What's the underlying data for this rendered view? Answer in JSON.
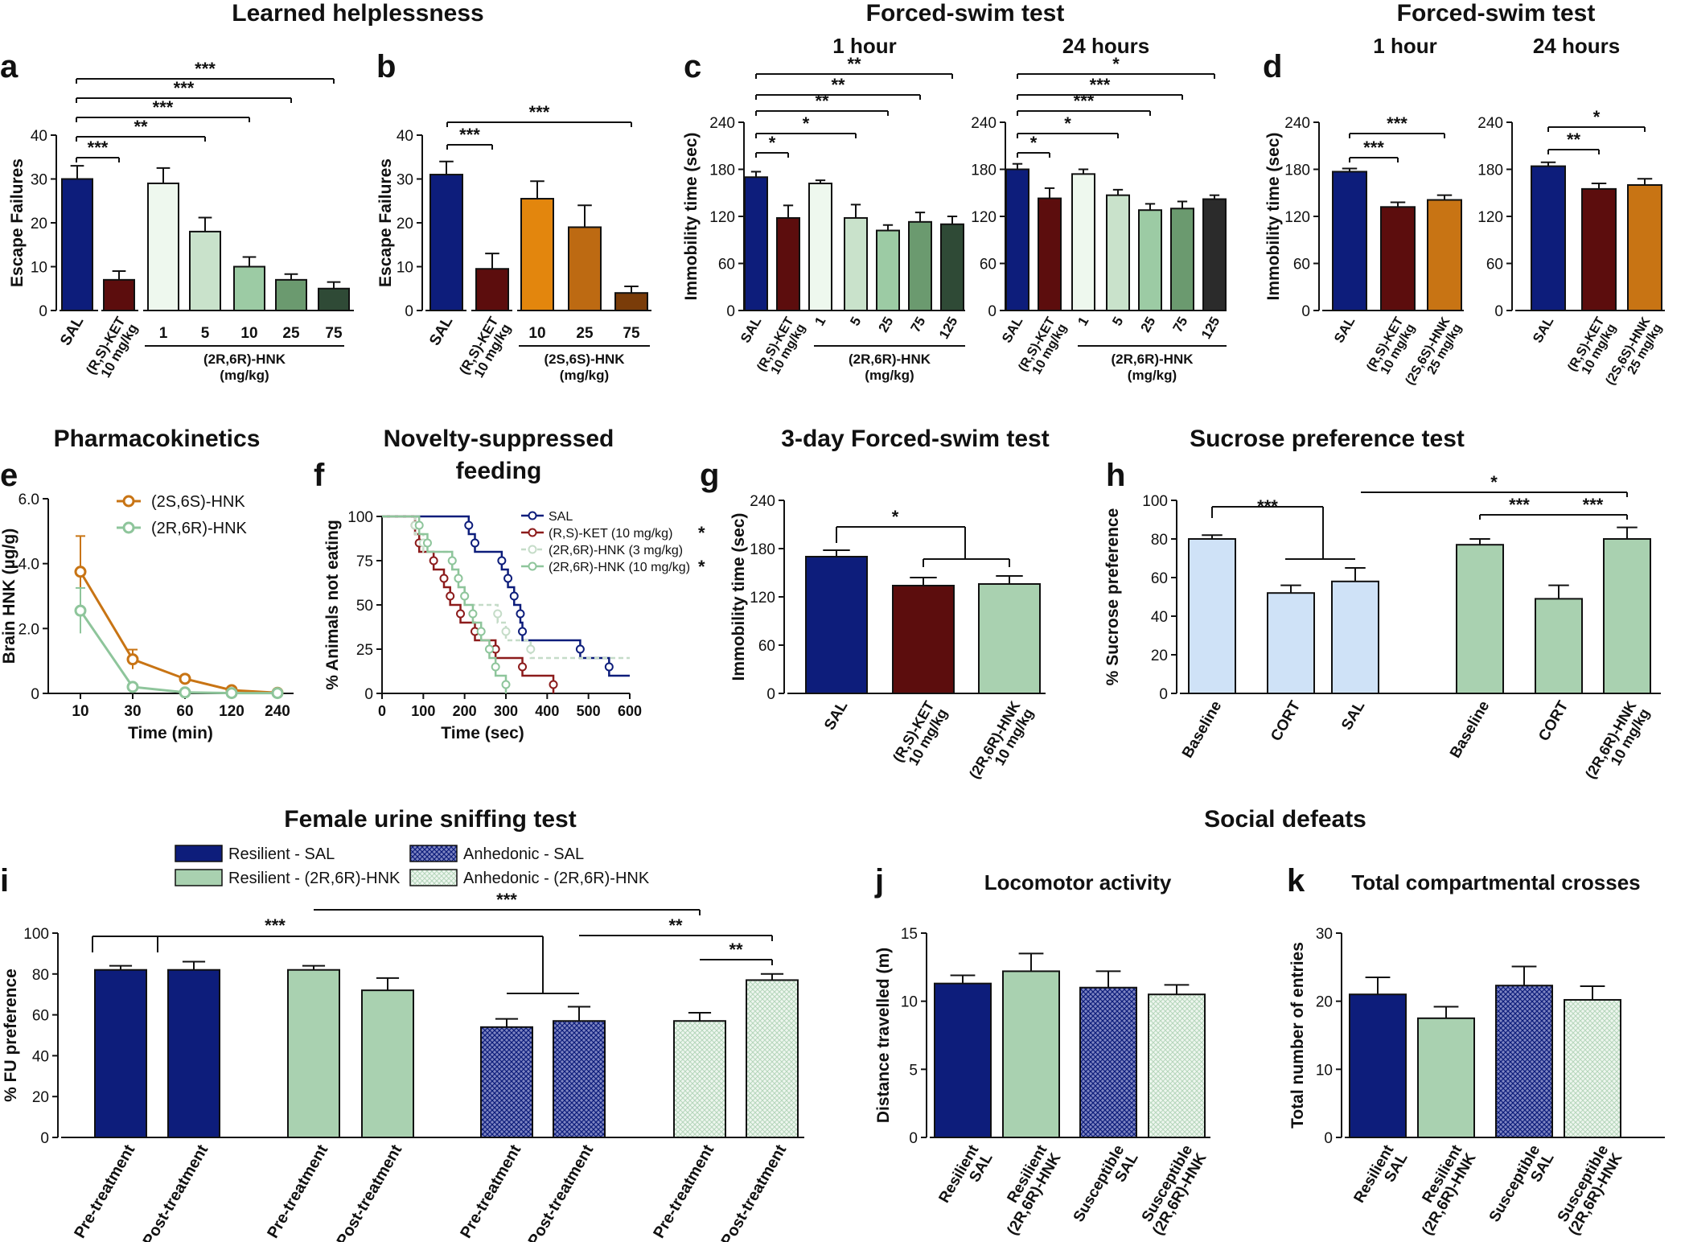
{
  "colors": {
    "sal": "#0d1d7b",
    "ket": "#5c0d0d",
    "hnk26_1": "#eef8ee",
    "hnk26_5": "#c9e2cb",
    "hnk26_10": "#9ccba4",
    "hnk26_25": "#6b9a6f",
    "hnk26_75": "#2f4a36",
    "hnk26_125": "#2b2b2b",
    "hnk26": "#a9d1b0",
    "hnk26_line": "#8ec59b",
    "hnk66_10": "#e3860d",
    "hnk66_25": "#bd6a12",
    "hnk66_75": "#7a3c09",
    "hnk66": "#c87414",
    "light_blue": "#cfe2f7",
    "light_green": "#a9d1b0",
    "ket_line": "#8c1b1b",
    "hnk26_3": "#c5dcc8"
  },
  "headers": {
    "learned": "Learned helplessness",
    "fst": "Forced-swim test",
    "fst2": "Forced-swim test",
    "pk": "Pharmacokinetics",
    "nsf1": "Novelty-suppressed",
    "nsf2": "feeding",
    "fst3": "3-day Forced-swim test",
    "spt": "Sucrose preference test",
    "fust": "Female urine sniffing test",
    "social": "Social defeats"
  },
  "chart_data": [
    {
      "panel": "a",
      "type": "bar",
      "title": "Learned helplessness",
      "ylabel": "Escape Failures",
      "ylim": [
        0,
        40
      ],
      "yticks": [
        "0",
        "10",
        "20",
        "30",
        "40"
      ],
      "categories": [
        "SAL",
        "(R,S)-KET 10 mg/kg",
        "1",
        "5",
        "10",
        "25",
        "75"
      ],
      "values": [
        30,
        7,
        29,
        18,
        10,
        7,
        5
      ],
      "errors": [
        3,
        2,
        3.5,
        3.2,
        2.2,
        1.3,
        1.5
      ],
      "group_label": "(2R,6R)-HNK",
      "group_unit": "(mg/kg)",
      "significance": [
        "***",
        "**",
        "***",
        "***",
        "***"
      ]
    },
    {
      "panel": "b",
      "type": "bar",
      "ylabel": "Escape Failures",
      "ylim": [
        0,
        40
      ],
      "yticks": [
        "0",
        "10",
        "20",
        "30",
        "40"
      ],
      "categories": [
        "SAL",
        "(R,S)-KET 10 mg/kg",
        "10",
        "25",
        "75"
      ],
      "values": [
        31,
        9.5,
        25.5,
        19,
        4
      ],
      "errors": [
        3,
        3.5,
        4,
        5,
        1.5
      ],
      "group_label": "(2S,6S)-HNK",
      "group_unit": "(mg/kg)",
      "significance": [
        "***",
        "***"
      ]
    },
    {
      "panel": "c",
      "type": "bar",
      "title": "Forced-swim test",
      "ylabel": "Immobility time (sec)",
      "ylim": [
        0,
        240
      ],
      "yticks": [
        "0",
        "60",
        "120",
        "180",
        "240"
      ],
      "subplots": [
        {
          "subtitle": "1 hour",
          "categories": [
            "SAL",
            "(R,S)-KET 10 mg/kg",
            "1",
            "5",
            "25",
            "75",
            "125"
          ],
          "values": [
            170,
            118,
            162,
            118,
            102,
            113,
            110
          ],
          "errors": [
            7,
            16,
            4,
            17,
            7,
            12,
            10
          ],
          "significance": [
            "*",
            "*",
            "**",
            "**",
            "**"
          ]
        },
        {
          "subtitle": "24 hours",
          "categories": [
            "SAL",
            "(R,S)-KET 10 mg/kg",
            "1",
            "5",
            "25",
            "75",
            "125"
          ],
          "values": [
            180,
            143,
            174,
            147,
            128,
            130,
            142
          ],
          "errors": [
            7,
            13,
            6,
            7,
            8,
            9,
            5
          ],
          "significance": [
            "*",
            "*",
            "***",
            "***",
            "*"
          ]
        }
      ],
      "group_label": "(2R,6R)-HNK",
      "group_unit": "(mg/kg)"
    },
    {
      "panel": "d",
      "type": "bar",
      "title": "Forced-swim test",
      "ylabel": "Immobility time (sec)",
      "ylim": [
        0,
        240
      ],
      "yticks": [
        "0",
        "60",
        "120",
        "180",
        "240"
      ],
      "subplots": [
        {
          "subtitle": "1 hour",
          "categories": [
            "SAL",
            "(R,S)-KET 10 mg/kg",
            "(2S,6S)-HNK 25 mg/kg"
          ],
          "values": [
            177,
            132,
            141
          ],
          "errors": [
            4,
            6,
            6
          ],
          "significance": [
            "***",
            "***"
          ]
        },
        {
          "subtitle": "24 hours",
          "categories": [
            "SAL",
            "(R,S)-KET 10 mg/kg",
            "(2S,6S)-HNK 25 mg/kg"
          ],
          "values": [
            184,
            155,
            160
          ],
          "errors": [
            5,
            7,
            8
          ],
          "significance": [
            "**",
            "*"
          ]
        }
      ]
    },
    {
      "panel": "e",
      "type": "line",
      "title": "Pharmacokinetics",
      "xlabel": "Time (min)",
      "ylabel": "Brain HNK (µg/g)",
      "ylim": [
        0,
        6
      ],
      "yticks": [
        "0",
        "2.0",
        "4.0",
        "6.0"
      ],
      "categories": [
        "10",
        "30",
        "60",
        "120",
        "240"
      ],
      "series": [
        {
          "name": "(2S,6S)-HNK",
          "values": [
            3.75,
            1.05,
            0.45,
            0.1,
            0.02
          ],
          "errors": [
            1.1,
            0.3,
            0.1,
            0.05,
            0.02
          ]
        },
        {
          "name": "(2R,6R)-HNK",
          "values": [
            2.55,
            0.2,
            0.03,
            0.01,
            0.01
          ],
          "errors": [
            0.7,
            0.05,
            0.02,
            0.01,
            0.01
          ]
        }
      ]
    },
    {
      "panel": "f",
      "type": "line",
      "title": "Novelty-suppressed feeding",
      "xlabel": "Time (sec)",
      "ylabel": "% Animals not eating",
      "xlim": [
        0,
        600
      ],
      "ylim": [
        0,
        100
      ],
      "xticks": [
        "0",
        "100",
        "200",
        "300",
        "400",
        "500",
        "600"
      ],
      "yticks": [
        "0",
        "25",
        "50",
        "75",
        "100"
      ],
      "series": [
        {
          "name": "SAL",
          "sig": "",
          "steps": [
            [
              0,
              100
            ],
            [
              210,
              100
            ],
            [
              210,
              90
            ],
            [
              225,
              90
            ],
            [
              225,
              80
            ],
            [
              290,
              80
            ],
            [
              290,
              70
            ],
            [
              305,
              70
            ],
            [
              305,
              60
            ],
            [
              320,
              60
            ],
            [
              320,
              50
            ],
            [
              335,
              50
            ],
            [
              335,
              40
            ],
            [
              340,
              40
            ],
            [
              340,
              30
            ],
            [
              480,
              30
            ],
            [
              480,
              20
            ],
            [
              550,
              20
            ],
            [
              550,
              10
            ],
            [
              600,
              10
            ]
          ]
        },
        {
          "name": "(R,S)-KET (10 mg/kg)",
          "sig": "*",
          "steps": [
            [
              0,
              100
            ],
            [
              80,
              100
            ],
            [
              80,
              90
            ],
            [
              90,
              90
            ],
            [
              90,
              80
            ],
            [
              125,
              80
            ],
            [
              125,
              70
            ],
            [
              150,
              70
            ],
            [
              150,
              60
            ],
            [
              165,
              60
            ],
            [
              165,
              50
            ],
            [
              190,
              50
            ],
            [
              190,
              40
            ],
            [
              225,
              40
            ],
            [
              225,
              30
            ],
            [
              275,
              30
            ],
            [
              275,
              20
            ],
            [
              340,
              20
            ],
            [
              340,
              10
            ],
            [
              415,
              10
            ],
            [
              415,
              0
            ]
          ]
        },
        {
          "name": "(2R,6R)-HNK (3 mg/kg)",
          "sig": "",
          "steps": [
            [
              0,
              100
            ],
            [
              80,
              100
            ],
            [
              80,
              90
            ],
            [
              100,
              90
            ],
            [
              100,
              80
            ],
            [
              170,
              80
            ],
            [
              170,
              70
            ],
            [
              185,
              70
            ],
            [
              185,
              60
            ],
            [
              200,
              60
            ],
            [
              200,
              50
            ],
            [
              280,
              50
            ],
            [
              280,
              40
            ],
            [
              300,
              40
            ],
            [
              300,
              30
            ],
            [
              360,
              30
            ],
            [
              360,
              20
            ],
            [
              600,
              20
            ]
          ]
        },
        {
          "name": "(2R,6R)-HNK (10 mg/kg)",
          "sig": "*",
          "steps": [
            [
              0,
              100
            ],
            [
              90,
              100
            ],
            [
              90,
              90
            ],
            [
              110,
              90
            ],
            [
              110,
              80
            ],
            [
              170,
              80
            ],
            [
              170,
              70
            ],
            [
              185,
              70
            ],
            [
              185,
              60
            ],
            [
              200,
              60
            ],
            [
              200,
              50
            ],
            [
              220,
              50
            ],
            [
              220,
              40
            ],
            [
              240,
              40
            ],
            [
              240,
              30
            ],
            [
              260,
              30
            ],
            [
              260,
              20
            ],
            [
              275,
              20
            ],
            [
              275,
              10
            ],
            [
              300,
              10
            ],
            [
              300,
              0
            ]
          ]
        }
      ]
    },
    {
      "panel": "g",
      "type": "bar",
      "title": "3-day Forced-swim test",
      "ylabel": "Immobility time (sec)",
      "ylim": [
        0,
        240
      ],
      "yticks": [
        "0",
        "60",
        "120",
        "180",
        "240"
      ],
      "categories": [
        "SAL",
        "(R,S)-KET 10 mg/kg",
        "(2R,6R)-HNK 10 mg/kg"
      ],
      "values": [
        170,
        134,
        136
      ],
      "errors": [
        8,
        10,
        10
      ],
      "significance": [
        "*"
      ]
    },
    {
      "panel": "h",
      "type": "bar",
      "title": "Sucrose preference test",
      "ylabel": "% Sucrose preference",
      "ylim": [
        0,
        100
      ],
      "yticks": [
        "0",
        "20",
        "40",
        "60",
        "80",
        "100"
      ],
      "categories": [
        "Baseline",
        "CORT",
        "SAL",
        "Baseline",
        "CORT",
        "(2R,6R)-HNK 10 mg/kg"
      ],
      "values": [
        80,
        52,
        58,
        77,
        49,
        80
      ],
      "errors": [
        2,
        4,
        7,
        3,
        7,
        6
      ],
      "significance": [
        "***",
        "*",
        "***",
        "***"
      ]
    },
    {
      "panel": "i",
      "type": "bar",
      "title": "Female urine sniffing test",
      "ylabel": "% FU preference",
      "ylim": [
        0,
        100
      ],
      "yticks": [
        "0",
        "20",
        "40",
        "60",
        "80",
        "100"
      ],
      "legend": [
        "Resilient - SAL",
        "Resilient - (2R,6R)-HNK",
        "Anhedonic - SAL",
        "Anhedonic - (2R,6R)-HNK"
      ],
      "categories": [
        "Pre-treatment",
        "Post-treatment",
        "Pre-treatment",
        "Post-treatment",
        "Pre-treatment",
        "Post-treatment",
        "Pre-treatment",
        "Post-treatment"
      ],
      "values": [
        82,
        82,
        82,
        72,
        54,
        57,
        57,
        77
      ],
      "errors": [
        2,
        4,
        2,
        6,
        4,
        7,
        4,
        3
      ],
      "significance": [
        "***",
        "***",
        "**",
        "**"
      ]
    },
    {
      "panel": "j",
      "type": "bar",
      "title": "Locomotor activity",
      "header": "Social defeats",
      "ylabel": "Distance travelled (m)",
      "ylim": [
        0,
        15
      ],
      "yticks": [
        "0",
        "5",
        "10",
        "15"
      ],
      "categories": [
        "Resilient SAL",
        "Resilient (2R,6R)-HNK",
        "Susceptible SAL",
        "Susceptible (2R,6R)-HNK"
      ],
      "values": [
        11.3,
        12.2,
        11,
        10.5
      ],
      "errors": [
        0.6,
        1.3,
        1.2,
        0.7
      ]
    },
    {
      "panel": "k",
      "type": "bar",
      "title": "Total compartmental crosses",
      "ylabel": "Total number of entries",
      "ylim": [
        0,
        30
      ],
      "yticks": [
        "0",
        "10",
        "20",
        "30"
      ],
      "categories": [
        "Resilient SAL",
        "Resilient (2R,6R)-HNK",
        "Susceptible SAL",
        "Susceptible (2R,6R)-HNK"
      ],
      "values": [
        21,
        17.5,
        22.3,
        20.2
      ],
      "errors": [
        2.5,
        1.7,
        2.8,
        2
      ]
    }
  ]
}
